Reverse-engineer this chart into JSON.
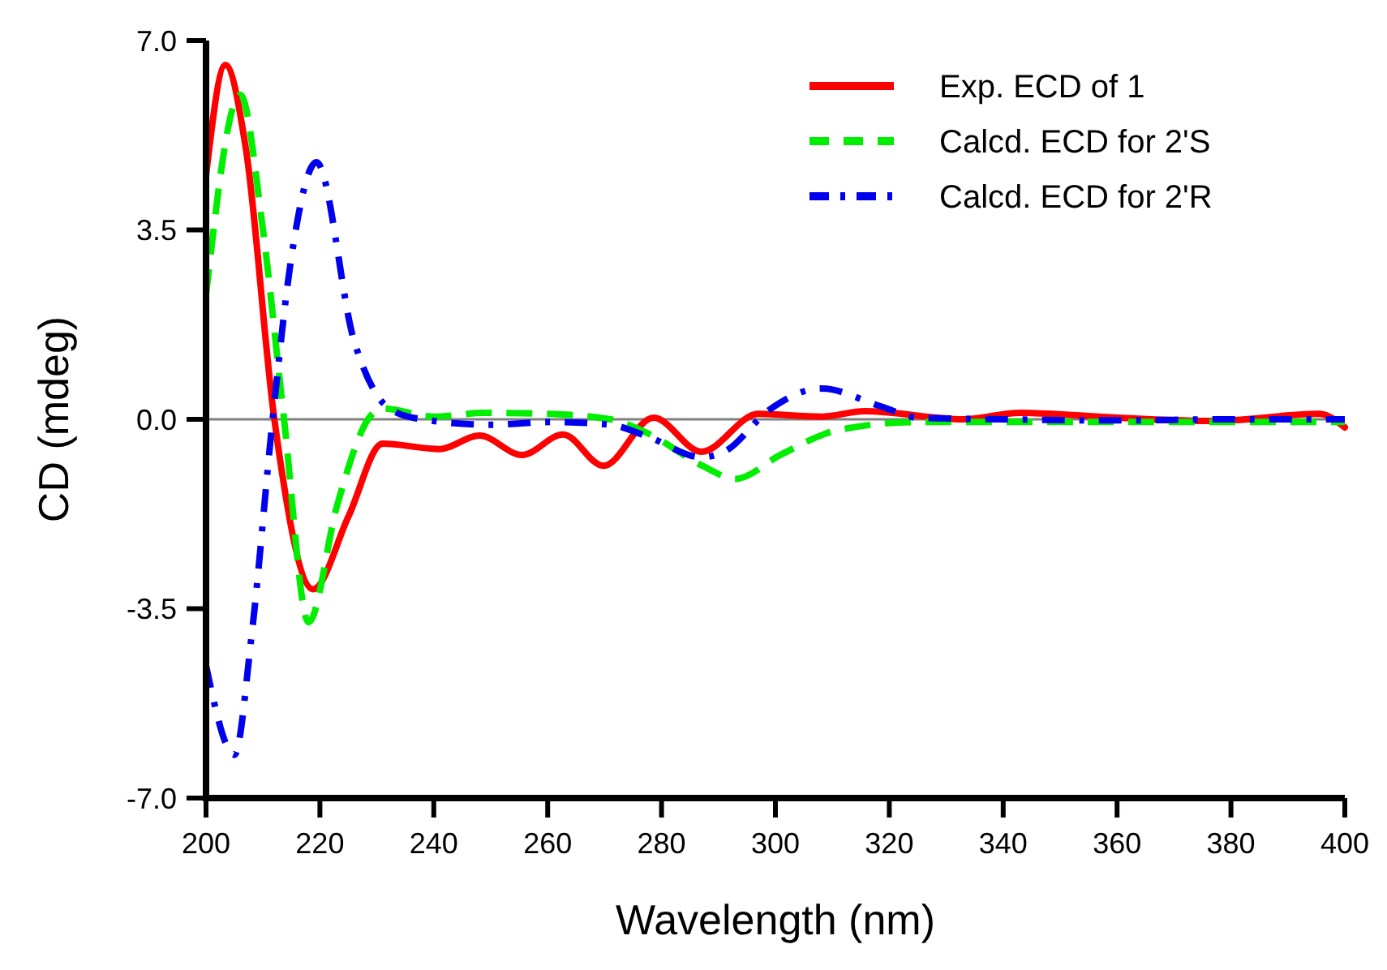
{
  "chart_data": {
    "type": "line",
    "xlabel": "Wavelength (nm)",
    "ylabel": "CD (mdeg)",
    "xlim": [
      200,
      400
    ],
    "xticks": [
      200,
      220,
      240,
      260,
      280,
      300,
      320,
      340,
      360,
      380,
      400
    ],
    "ylim": [
      -7,
      7
    ],
    "yticks": [
      {
        "value": -7,
        "label": "-7.0"
      },
      {
        "value": -3.5,
        "label": "-3.5"
      },
      {
        "value": 0,
        "label": "0.0"
      },
      {
        "value": 3.5,
        "label": "3.5"
      },
      {
        "value": 7,
        "label": "7.0"
      }
    ],
    "legend": "top right",
    "grid": false,
    "marker": "none",
    "ref_lines": [
      {
        "axis": "y",
        "value": 0,
        "color": "#808080"
      }
    ],
    "series": [
      {
        "name": "Exp. ECD of 1",
        "color": "#ff0000",
        "line_style": "solid",
        "x": [
          200,
          203.4,
          207,
          212,
          218.8,
          225,
          231,
          241,
          248,
          255.5,
          262.7,
          269.8,
          278.6,
          287,
          297,
          308,
          315.7,
          333,
          343,
          360,
          377,
          395.5,
          400
        ],
        "values": [
          4.5,
          6.55,
          5,
          0,
          -3.14,
          -1.8,
          -0.45,
          -0.55,
          -0.3,
          -0.66,
          -0.28,
          -0.86,
          0.03,
          -0.6,
          0.1,
          0.05,
          0.15,
          0,
          0.12,
          0.03,
          -0.03,
          0.1,
          -0.15
        ]
      },
      {
        "name": "Calcd. ECD for 2'S",
        "color": "#00ee00",
        "line_style": "dashed",
        "x": [
          200,
          206,
          210,
          213.7,
          218,
          223,
          228.8,
          231,
          240,
          249,
          260,
          271,
          278,
          287,
          293,
          301,
          311,
          325,
          340,
          360,
          380,
          400
        ],
        "values": [
          2.3,
          6.0,
          3.5,
          0,
          -3.75,
          -1.6,
          0.05,
          0.2,
          0.05,
          0.12,
          0.1,
          0,
          -0.28,
          -0.85,
          -1.1,
          -0.65,
          -0.2,
          -0.05,
          -0.05,
          -0.05,
          -0.05,
          -0.05
        ]
      },
      {
        "name": "Calcd. ECD for 2'R",
        "color": "#0000ee",
        "line_style": "dashdot",
        "x": [
          200,
          205,
          208,
          211.7,
          215,
          219.4,
          226,
          230,
          233,
          238,
          250,
          260.7,
          271,
          277.8,
          287,
          291,
          299,
          308,
          318.5,
          325,
          340,
          360,
          380,
          400
        ],
        "values": [
          -4.55,
          -6.2,
          -4,
          0,
          3,
          4.75,
          1.45,
          0.45,
          0.15,
          0,
          -0.1,
          -0.05,
          -0.1,
          -0.33,
          -0.7,
          -0.6,
          0.18,
          0.57,
          0.24,
          0.03,
          0,
          -0.02,
          0,
          0
        ]
      }
    ]
  }
}
